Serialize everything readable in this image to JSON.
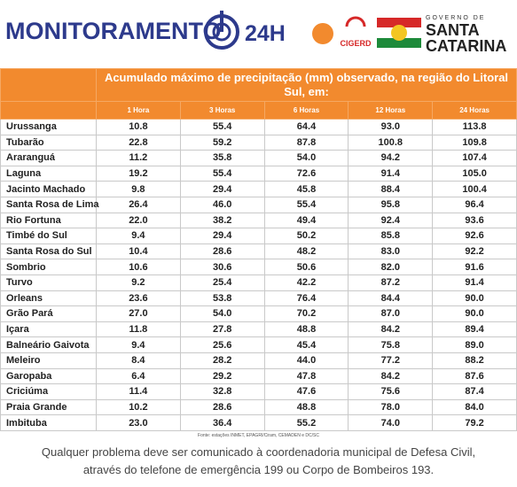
{
  "header": {
    "brand": "MONITORAMENTO",
    "brand_suffix": "24H",
    "badge": "CIGERD",
    "gov_small": "GOVERNO DE",
    "gov_line1": "SANTA",
    "gov_line2": "CATARINA"
  },
  "table": {
    "title": "Acumulado máximo de precipitação (mm) observado, na região do Litoral Sul, em:",
    "columns": [
      "1 Hora",
      "3 Horas",
      "6 Horas",
      "12 Horas",
      "24 Horas"
    ],
    "rows": [
      [
        "Urussanga",
        "10.8",
        "55.4",
        "64.4",
        "93.0",
        "113.8"
      ],
      [
        "Tubarão",
        "22.8",
        "59.2",
        "87.8",
        "100.8",
        "109.8"
      ],
      [
        "Araranguá",
        "11.2",
        "35.8",
        "54.0",
        "94.2",
        "107.4"
      ],
      [
        "Laguna",
        "19.2",
        "55.4",
        "72.6",
        "91.4",
        "105.0"
      ],
      [
        "Jacinto Machado",
        "9.8",
        "29.4",
        "45.8",
        "88.4",
        "100.4"
      ],
      [
        "Santa Rosa de Lima",
        "26.4",
        "46.0",
        "55.4",
        "95.8",
        "96.4"
      ],
      [
        "Rio Fortuna",
        "22.0",
        "38.2",
        "49.4",
        "92.4",
        "93.6"
      ],
      [
        "Timbé do Sul",
        "9.4",
        "29.4",
        "50.2",
        "85.8",
        "92.6"
      ],
      [
        "Santa Rosa do Sul",
        "10.4",
        "28.6",
        "48.2",
        "83.0",
        "92.2"
      ],
      [
        "Sombrio",
        "10.6",
        "30.6",
        "50.6",
        "82.0",
        "91.6"
      ],
      [
        "Turvo",
        "9.2",
        "25.4",
        "42.2",
        "87.2",
        "91.4"
      ],
      [
        "Orleans",
        "23.6",
        "53.8",
        "76.4",
        "84.4",
        "90.0"
      ],
      [
        "Grão Pará",
        "27.0",
        "54.0",
        "70.2",
        "87.0",
        "90.0"
      ],
      [
        "Içara",
        "11.8",
        "27.8",
        "48.8",
        "84.2",
        "89.4"
      ],
      [
        "Balneário Gaivota",
        "9.4",
        "25.6",
        "45.4",
        "75.8",
        "89.0"
      ],
      [
        "Meleiro",
        "8.4",
        "28.2",
        "44.0",
        "77.2",
        "88.2"
      ],
      [
        "Garopaba",
        "6.4",
        "29.2",
        "47.8",
        "84.2",
        "87.6"
      ],
      [
        "Criciúma",
        "11.4",
        "32.8",
        "47.6",
        "75.6",
        "87.4"
      ],
      [
        "Praia Grande",
        "10.2",
        "28.6",
        "48.8",
        "78.0",
        "84.0"
      ],
      [
        "Imbituba",
        "23.0",
        "36.4",
        "55.2",
        "74.0",
        "79.2"
      ]
    ],
    "source": "Fonte: estações INMET, EPAGRI/Ciram, CEMADEN e DC/SC"
  },
  "footer": {
    "line1": "Qualquer problema deve ser comunicado à coordenadoria municipal de Defesa Civil,",
    "line2": "através do telefone de emergência 199 ou Corpo de Bombeiros 193."
  }
}
